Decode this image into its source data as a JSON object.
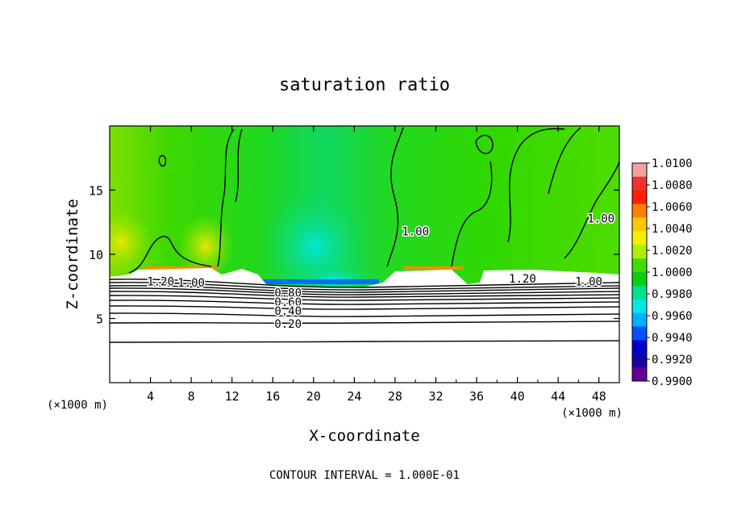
{
  "chart_data": {
    "type": "heatmap",
    "title": "saturation ratio",
    "xlabel": "X-coordinate",
    "ylabel": "Z-coordinate",
    "x_unit_label": "(×1000 m)",
    "x_unit_label_right": "(×1000 m)",
    "xlim": [
      0,
      50
    ],
    "ylim": [
      0,
      20
    ],
    "x_ticks": [
      4,
      8,
      12,
      16,
      20,
      24,
      28,
      32,
      36,
      40,
      44,
      48
    ],
    "y_ticks": [
      5,
      10,
      15
    ],
    "footer": "CONTOUR INTERVAL = 1.000E-01",
    "colorbar": {
      "labels": [
        "1.0100",
        "1.0080",
        "1.0060",
        "1.0040",
        "1.0020",
        "1.0000",
        "0.9980",
        "0.9960",
        "0.9940",
        "0.9920",
        "0.9900"
      ],
      "colors": [
        "#f4a0a0",
        "#f03030",
        "#ff2000",
        "#ff8000",
        "#ffc800",
        "#f0f000",
        "#b0ee00",
        "#40dd00",
        "#10cc10",
        "#00e090",
        "#00e8e8",
        "#00b0ff",
        "#0050ff",
        "#0000d0",
        "#1800a0",
        "#60009a"
      ]
    },
    "contour_labels": [
      {
        "text": "1.20",
        "x": 5,
        "z": 7.9
      },
      {
        "text": "1.00",
        "x": 8,
        "z": 7.8
      },
      {
        "text": "0.80",
        "x": 17.5,
        "z": 7.0
      },
      {
        "text": "0.60",
        "x": 17.5,
        "z": 6.3
      },
      {
        "text": "0.40",
        "x": 17.5,
        "z": 5.6
      },
      {
        "text": "0.20",
        "x": 17.5,
        "z": 4.6
      },
      {
        "text": "1.00",
        "x": 30,
        "z": 11.8
      },
      {
        "text": "1.20",
        "x": 40.5,
        "z": 8.1
      },
      {
        "text": "1.00",
        "x": 47,
        "z": 7.9
      },
      {
        "text": "1.00",
        "x": 48.2,
        "z": 12.8
      }
    ]
  }
}
